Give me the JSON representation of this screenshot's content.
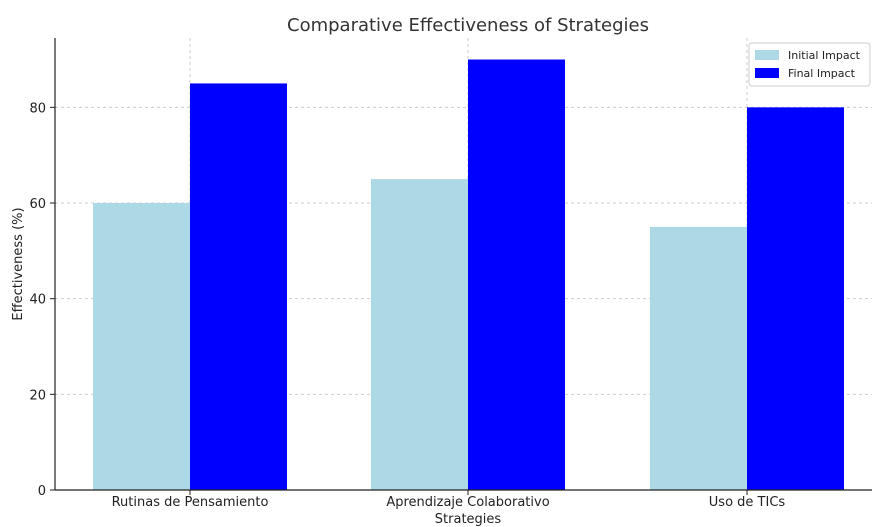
{
  "chart_data": {
    "type": "bar",
    "title": "Comparative Effectiveness of Strategies",
    "xlabel": "Strategies",
    "ylabel": "Effectiveness (%)",
    "categories": [
      "Rutinas de Pensamiento",
      "Aprendizaje Colaborativo",
      "Uso de TICs"
    ],
    "series": [
      {
        "name": "Initial Impact",
        "values": [
          60,
          65,
          55
        ],
        "color": "#add8e6"
      },
      {
        "name": "Final Impact",
        "values": [
          85,
          90,
          80
        ],
        "color": "#0000ff"
      }
    ],
    "ylim": [
      0,
      94.5
    ],
    "yticks": [
      0,
      20,
      40,
      60,
      80
    ],
    "grid": true,
    "legend": "top-right"
  }
}
